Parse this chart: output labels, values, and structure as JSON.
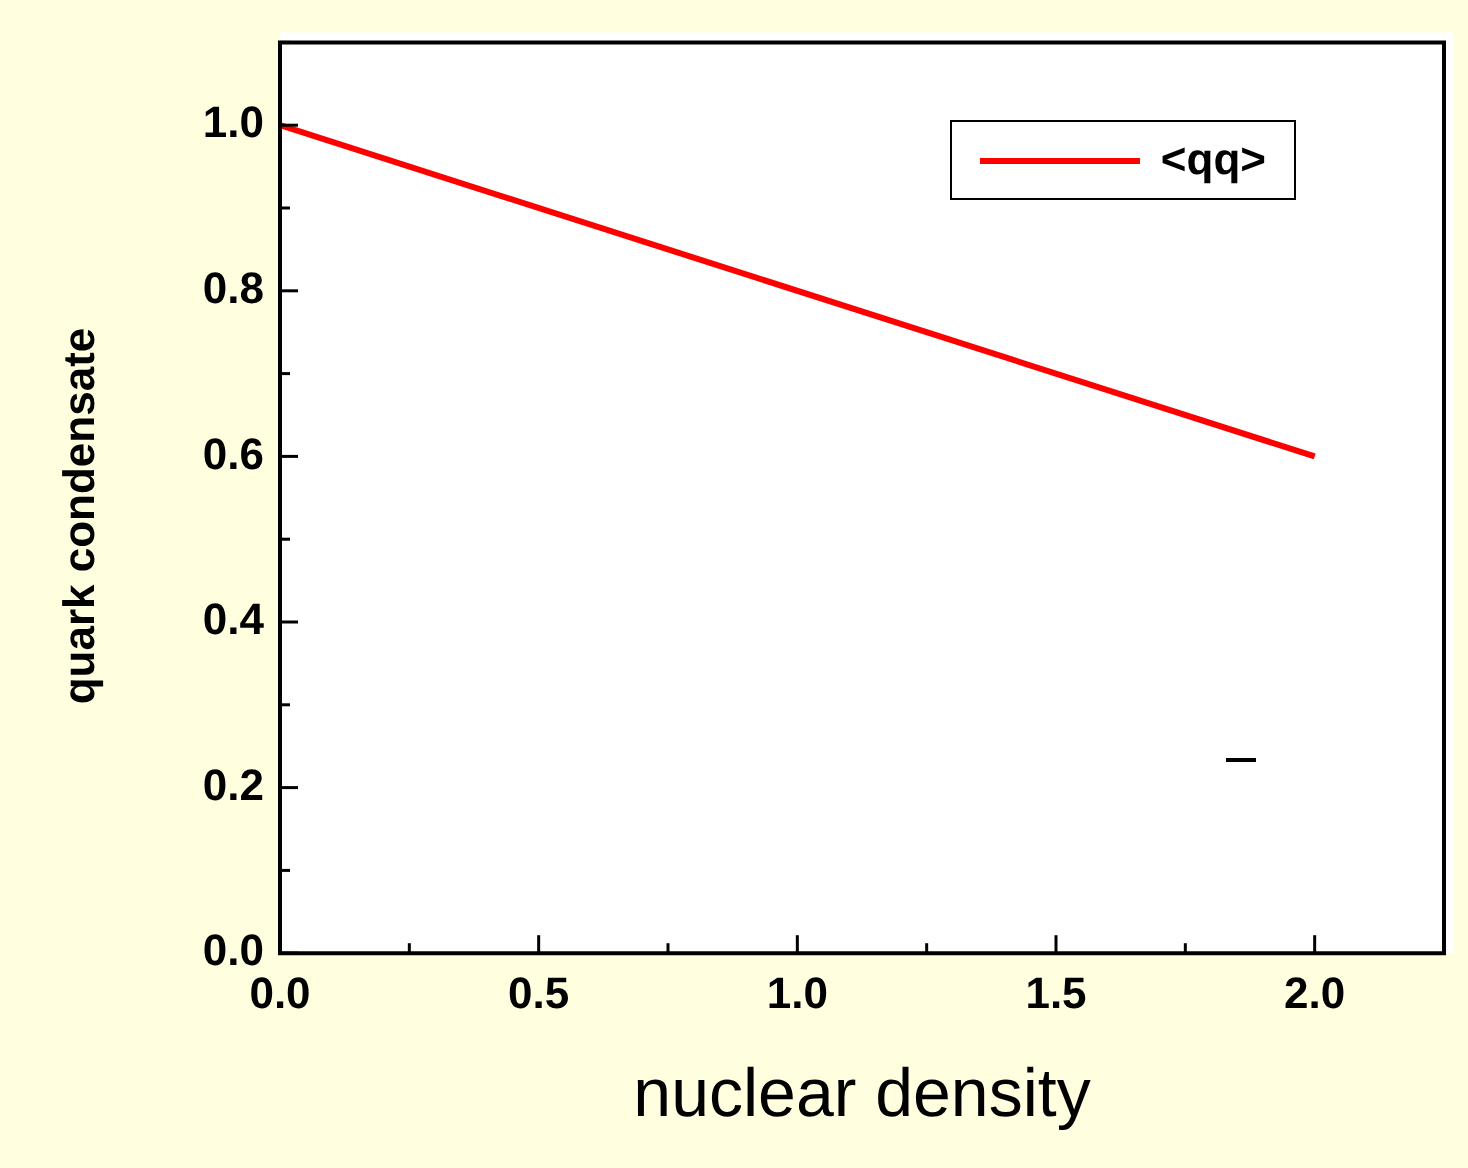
{
  "chart_data": {
    "type": "line",
    "xlabel": "nuclear density",
    "ylabel": "quark condensate",
    "x": [
      0,
      2
    ],
    "series": [
      {
        "name": "<qq>",
        "color": "#ff0000",
        "values": [
          1,
          0.6
        ]
      }
    ],
    "xlim": [
      0,
      2.25
    ],
    "ylim": [
      0,
      1.1
    ],
    "xticks": [
      {
        "value": 0,
        "label": "0.0"
      },
      {
        "value": 0.25,
        "label": null
      },
      {
        "value": 0.5,
        "label": "0.5"
      },
      {
        "value": 0.75,
        "label": null
      },
      {
        "value": 1,
        "label": "1.0"
      },
      {
        "value": 1.25,
        "label": null
      },
      {
        "value": 1.5,
        "label": "1.5"
      },
      {
        "value": 1.75,
        "label": null
      },
      {
        "value": 2,
        "label": "2.0"
      },
      {
        "value": 2.25,
        "label": null
      }
    ],
    "yticks": [
      {
        "value": 0,
        "label": "0.0"
      },
      {
        "value": 0.1,
        "label": null
      },
      {
        "value": 0.2,
        "label": "0.2"
      },
      {
        "value": 0.3,
        "label": null
      },
      {
        "value": 0.4,
        "label": "0.4"
      },
      {
        "value": 0.5,
        "label": null
      },
      {
        "value": 0.6,
        "label": "0.6"
      },
      {
        "value": 0.7,
        "label": null
      },
      {
        "value": 0.8,
        "label": "0.8"
      },
      {
        "value": 0.9,
        "label": null
      },
      {
        "value": 1,
        "label": "1.0"
      },
      {
        "value": 1.1,
        "label": null
      }
    ],
    "legend": "top right",
    "grid": false,
    "marker": "none",
    "line_style": "solid"
  }
}
